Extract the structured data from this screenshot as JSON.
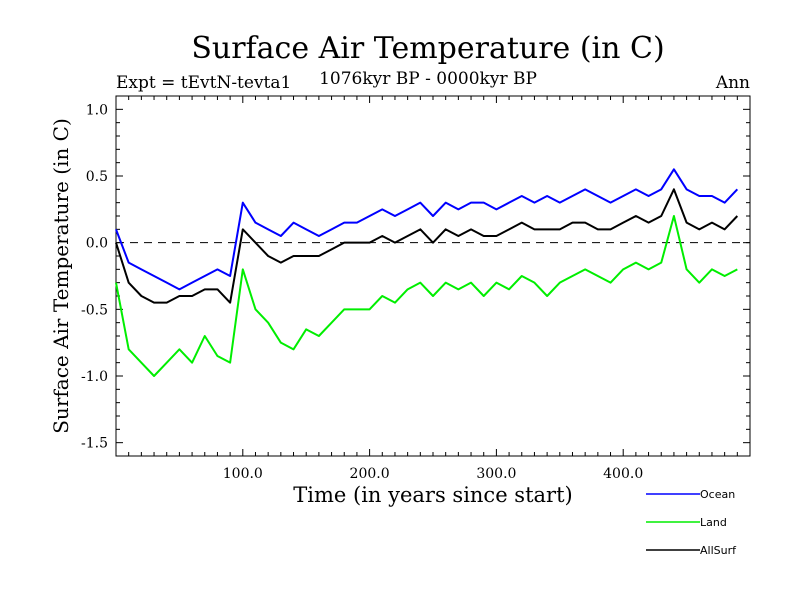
{
  "chart_data": {
    "type": "line",
    "title": "Surface Air Temperature (in C)",
    "subtitle": "1076kyr BP - 0000kyr BP",
    "experiment_label": "Expt = tEvtN-tevta1",
    "season_label": "Ann",
    "xlabel": "Time (in years since start)",
    "ylabel": "Surface Air Temperature (in C)",
    "xlim": [
      0,
      500
    ],
    "ylim": [
      -1.6,
      1.1
    ],
    "xticks": [
      100,
      200,
      300,
      400
    ],
    "xtick_labels": [
      "100.0",
      "200.0",
      "300.0",
      "400.0"
    ],
    "yticks": [
      1.0,
      0.5,
      0.0,
      -0.5,
      -1.0,
      -1.5
    ],
    "ytick_labels": [
      "1.0",
      "0.5",
      "0.0",
      "-0.5",
      "-1.0",
      "-1.5"
    ],
    "zero_line": 0,
    "legend_position": "bottom-right",
    "series": [
      {
        "name": "Ocean",
        "color": "#0000ff",
        "x_step": 10,
        "values": [
          0.1,
          -0.15,
          -0.2,
          -0.25,
          -0.3,
          -0.35,
          -0.3,
          -0.25,
          -0.2,
          -0.25,
          0.3,
          0.15,
          0.1,
          0.05,
          0.15,
          0.1,
          0.05,
          0.1,
          0.15,
          0.15,
          0.2,
          0.25,
          0.2,
          0.25,
          0.3,
          0.2,
          0.3,
          0.25,
          0.3,
          0.3,
          0.25,
          0.3,
          0.35,
          0.3,
          0.35,
          0.3,
          0.35,
          0.4,
          0.35,
          0.3,
          0.35,
          0.4,
          0.35,
          0.4,
          0.55,
          0.4,
          0.35,
          0.35,
          0.3,
          0.4
        ]
      },
      {
        "name": "Land",
        "color": "#00ee00",
        "x_step": 10,
        "values": [
          -0.3,
          -0.8,
          -0.9,
          -1.0,
          -0.9,
          -0.8,
          -0.9,
          -0.7,
          -0.85,
          -0.9,
          -0.2,
          -0.5,
          -0.6,
          -0.75,
          -0.8,
          -0.65,
          -0.7,
          -0.6,
          -0.5,
          -0.5,
          -0.5,
          -0.4,
          -0.45,
          -0.35,
          -0.3,
          -0.4,
          -0.3,
          -0.35,
          -0.3,
          -0.4,
          -0.3,
          -0.35,
          -0.25,
          -0.3,
          -0.4,
          -0.3,
          -0.25,
          -0.2,
          -0.25,
          -0.3,
          -0.2,
          -0.15,
          -0.2,
          -0.15,
          0.2,
          -0.2,
          -0.3,
          -0.2,
          -0.25,
          -0.2
        ]
      },
      {
        "name": "AllSurf",
        "color": "#000000",
        "x_step": 10,
        "values": [
          0.0,
          -0.3,
          -0.4,
          -0.45,
          -0.45,
          -0.4,
          -0.4,
          -0.35,
          -0.35,
          -0.45,
          0.1,
          0.0,
          -0.1,
          -0.15,
          -0.1,
          -0.1,
          -0.1,
          -0.05,
          0.0,
          0.0,
          0.0,
          0.05,
          0.0,
          0.05,
          0.1,
          0.0,
          0.1,
          0.05,
          0.1,
          0.05,
          0.05,
          0.1,
          0.15,
          0.1,
          0.1,
          0.1,
          0.15,
          0.15,
          0.1,
          0.1,
          0.15,
          0.2,
          0.15,
          0.2,
          0.4,
          0.15,
          0.1,
          0.15,
          0.1,
          0.2
        ]
      }
    ]
  }
}
